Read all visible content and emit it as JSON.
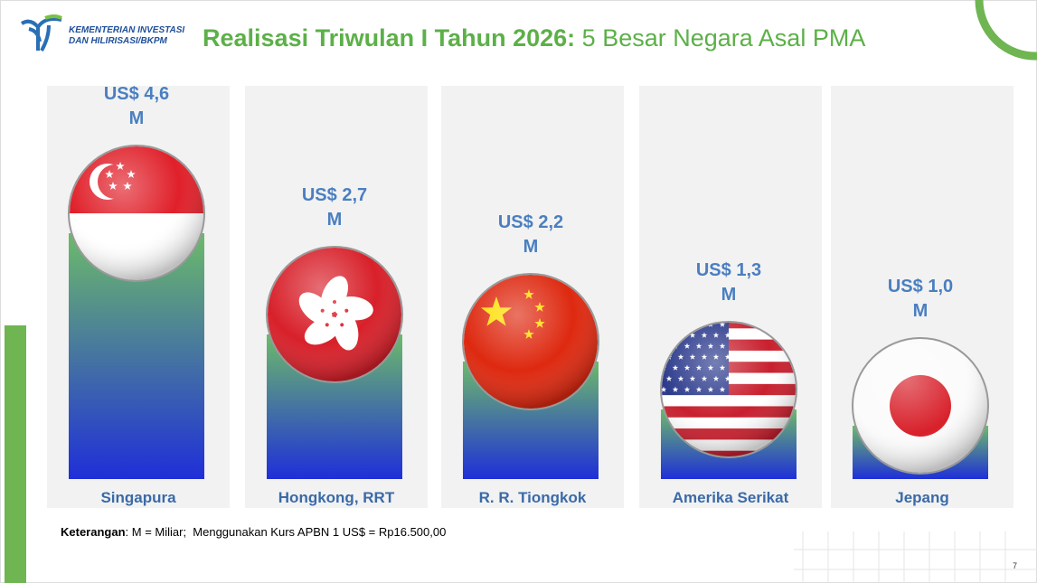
{
  "header": {
    "logo_line1": "KEMENTERIAN INVESTASI",
    "logo_line2": "DAN HILIRISASI/BKPM"
  },
  "chart_data": {
    "type": "bar",
    "title": "Realisasi Triwulan I Tahun 2026:",
    "subtitle": "5 Besar Negara Asal PMA",
    "categories": [
      "Singapura",
      "Hongkong, RRT",
      "R. R. Tiongkok",
      "Amerika Serikat",
      "Jepang"
    ],
    "values": [
      4.6,
      2.7,
      2.2,
      1.3,
      1.0
    ],
    "value_labels": [
      "US$ 4,6 M",
      "US$ 2,7 M",
      "US$ 2,2 M",
      "US$ 1,3 M",
      "US$ 1,0 M"
    ],
    "color": [
      "#6cba6a",
      "#1f2fd8"
    ]
  },
  "footnote": {
    "label": "Keterangan",
    "text": ": M = Miliar;  Menggunakan Kurs APBN 1 US$ = Rp16.500,00"
  },
  "page_number": "7"
}
